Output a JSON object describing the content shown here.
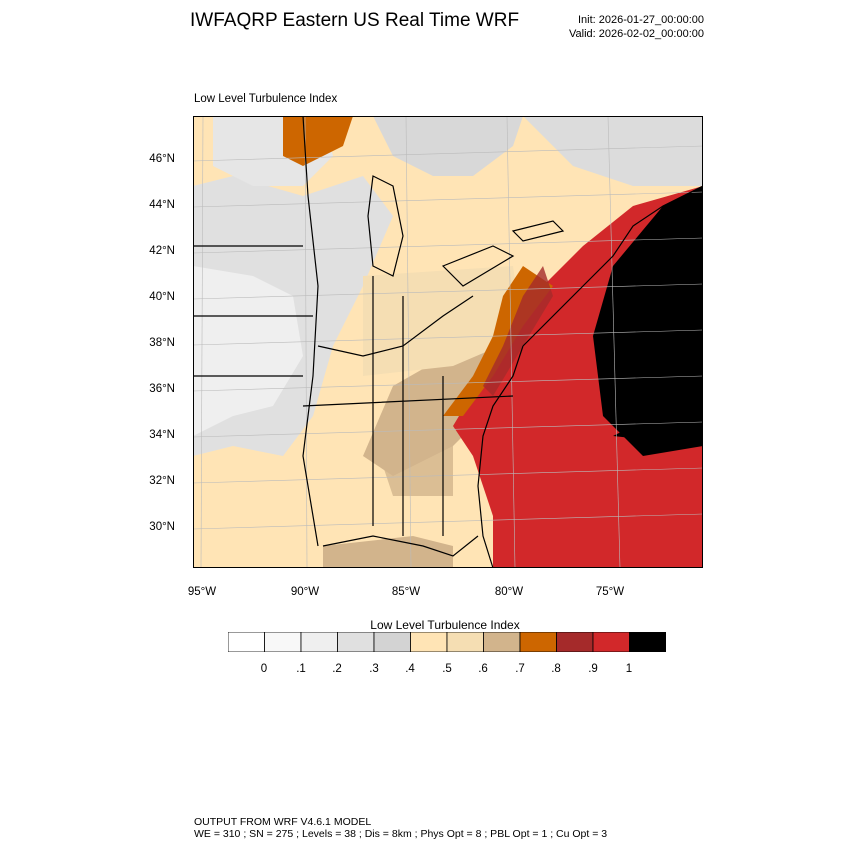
{
  "header": {
    "title": "IWFAQRP Eastern US Real Time WRF",
    "init": "Init: 2026-01-27_00:00:00",
    "valid": "Valid: 2026-02-02_00:00:00"
  },
  "map": {
    "subtitle": "Low Level Turbulence Index",
    "lat_labels": [
      "46°N",
      "44°N",
      "42°N",
      "40°N",
      "38°N",
      "36°N",
      "34°N",
      "32°N",
      "30°N"
    ],
    "lon_labels": [
      "95°W",
      "90°W",
      "85°W",
      "80°W",
      "75°W"
    ],
    "colors": {
      "ocean_deep": "#000000",
      "ocean": "#d2282a",
      "high": "#a52a2a",
      "mid_orange": "#cd6600",
      "tan": "#d2b48c",
      "wheat": "#f5deb3",
      "light": "#ffe4b5",
      "gray1": "#d3d3d3",
      "gray2": "#e0e0e0",
      "gray3": "#efefef",
      "white": "#f8f8f8"
    }
  },
  "colorbar": {
    "title": "Low Level Turbulence Index",
    "labels": [
      "0",
      ".1",
      ".2",
      ".3",
      ".4",
      ".5",
      ".6",
      ".7",
      ".8",
      ".9",
      "1"
    ],
    "colors": [
      "#ffffff",
      "#f8f8f8",
      "#efefef",
      "#e0e0e0",
      "#d3d3d3",
      "#ffe4b5",
      "#f5deb3",
      "#d2b48c",
      "#cd6600",
      "#a52a2a",
      "#d2282a",
      "#000000"
    ]
  },
  "footer": {
    "line1": "OUTPUT FROM WRF V4.6.1 MODEL",
    "line2": "WE = 310 ; SN = 275 ; Levels = 38 ; Dis = 8km ; Phys Opt = 8 ; PBL Opt = 1 ; Cu Opt = 3"
  }
}
